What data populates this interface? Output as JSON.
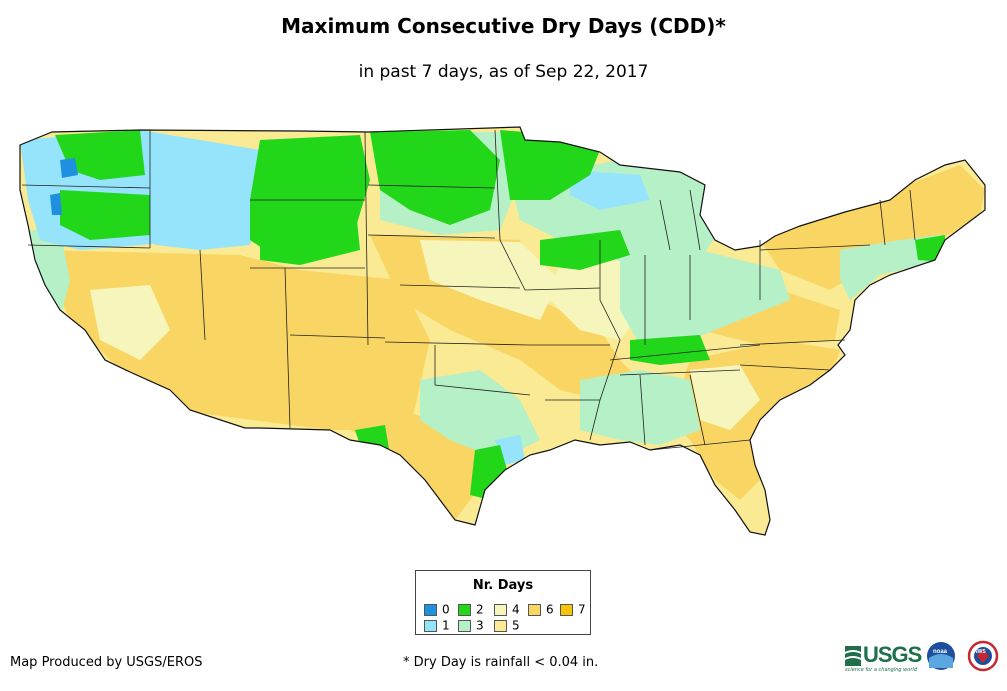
{
  "map": {
    "title": "Maximum Consecutive Dry Days (CDD)*",
    "subtitle": "in past 7 days, as of Sep 22, 2017",
    "region": "Contiguous United States",
    "background_class": 5
  },
  "legend": {
    "title": "Nr. Days",
    "items": [
      {
        "label": "0",
        "color": "#1f8fdf"
      },
      {
        "label": "1",
        "color": "#96e4fb"
      },
      {
        "label": "2",
        "color": "#22d61a"
      },
      {
        "label": "3",
        "color": "#b5f0c6"
      },
      {
        "label": "4",
        "color": "#f6f6bc"
      },
      {
        "label": "5",
        "color": "#f9ea93"
      },
      {
        "label": "6",
        "color": "#f9d664"
      },
      {
        "label": "7",
        "color": "#f7c30b"
      }
    ]
  },
  "footer": {
    "credit": "Map Produced by USGS/EROS",
    "footnote": "* Dry Day is rainfall < 0.04 in.",
    "logos": {
      "usgs": "USGS",
      "usgs_tagline": "science for a changing world",
      "noaa": "noaa",
      "nws": "NWS"
    }
  }
}
